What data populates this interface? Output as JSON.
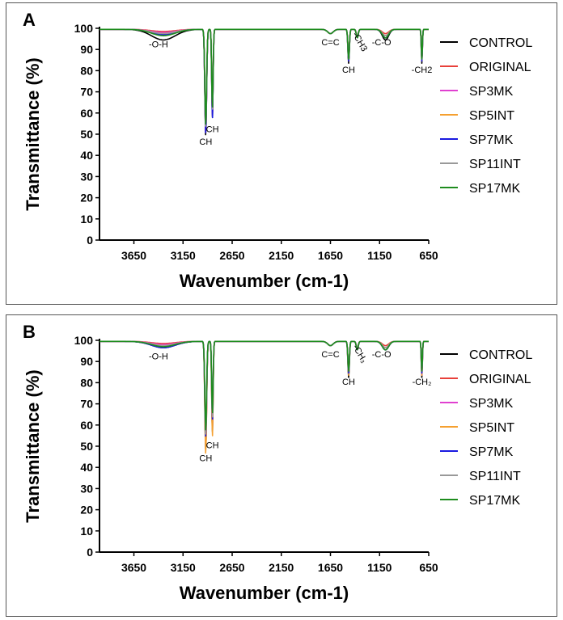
{
  "chart_data": [
    {
      "panel_label": "A",
      "type": "line",
      "xlabel": "Wavenumber (cm-1)",
      "ylabel": "Transmittance (%)",
      "xlim": [
        4000,
        650
      ],
      "x_reversed": true,
      "ylim": [
        0,
        100
      ],
      "x_ticks": [
        "3650",
        "3150",
        "2650",
        "2150",
        "1650",
        "1150",
        "650"
      ],
      "y_ticks": [
        "0",
        "10",
        "20",
        "30",
        "40",
        "50",
        "60",
        "70",
        "80",
        "90",
        "100"
      ],
      "legend_position": "right",
      "series": [
        {
          "name": "CONTROL",
          "color": "#000000",
          "values": {
            "oh_depth": 5,
            "ch_a": 50,
            "ch_b": 58,
            "ch_1465": 84,
            "ch3": 96,
            "co": 95,
            "ch2": 84
          }
        },
        {
          "name": "ORIGINAL",
          "color": "#e8403a",
          "values": {
            "oh_depth": 1,
            "ch_a": 52,
            "ch_b": 60,
            "ch_1465": 87,
            "ch3": 97,
            "co": 98,
            "ch2": 87
          }
        },
        {
          "name": "SP3MK",
          "color": "#e040d0",
          "values": {
            "oh_depth": 1.5,
            "ch_a": 51,
            "ch_b": 59,
            "ch_1465": 86,
            "ch3": 97,
            "co": 97,
            "ch2": 86
          }
        },
        {
          "name": "SP5INT",
          "color": "#f5a030",
          "values": {
            "oh_depth": 2,
            "ch_a": 53,
            "ch_b": 61,
            "ch_1465": 85,
            "ch3": 96,
            "co": 97,
            "ch2": 85
          }
        },
        {
          "name": "SP7MK",
          "color": "#1a1ae0",
          "values": {
            "oh_depth": 2.5,
            "ch_a": 51,
            "ch_b": 58,
            "ch_1465": 85,
            "ch3": 96,
            "co": 96,
            "ch2": 85
          }
        },
        {
          "name": "SP11INT",
          "color": "#999999",
          "values": {
            "oh_depth": 2,
            "ch_a": 54,
            "ch_b": 62,
            "ch_1465": 86,
            "ch3": 97,
            "co": 97,
            "ch2": 86
          }
        },
        {
          "name": "SP17MK",
          "color": "#1e8c1e",
          "values": {
            "oh_depth": 3,
            "ch_a": 55,
            "ch_b": 63,
            "ch_1465": 86,
            "ch3": 96,
            "co": 96,
            "ch2": 86
          }
        }
      ],
      "annotations": [
        {
          "text": "-O-H",
          "x": 3400,
          "y": 91
        },
        {
          "text": "CH",
          "x": 2919,
          "y": 45
        },
        {
          "text": "CH",
          "x": 2851,
          "y": 51
        },
        {
          "text": "C=C",
          "x": 1650,
          "y": 92
        },
        {
          "text": "CH",
          "x": 1465,
          "y": 79
        },
        {
          "text": "-CH3",
          "x": 1375,
          "y": 93
        },
        {
          "text": "-C-O",
          "x": 1130,
          "y": 92
        },
        {
          "text": "-CH2",
          "x": 720,
          "y": 79
        }
      ]
    },
    {
      "panel_label": "B",
      "type": "line",
      "xlabel": "Wavenumber (cm-1)",
      "ylabel": "Transmittance (%)",
      "xlim": [
        4000,
        650
      ],
      "x_reversed": true,
      "ylim": [
        0,
        100
      ],
      "x_ticks": [
        "3650",
        "3150",
        "2650",
        "2150",
        "1650",
        "1150",
        "650"
      ],
      "y_ticks": [
        "0",
        "10",
        "20",
        "30",
        "40",
        "50",
        "60",
        "70",
        "80",
        "90",
        "100"
      ],
      "legend_position": "right",
      "series": [
        {
          "name": "CONTROL",
          "color": "#000000",
          "values": {
            "oh_depth": 3,
            "ch_a": 49,
            "ch_b": 57,
            "ch_1465": 83,
            "ch3": 96,
            "co": 96,
            "ch2": 83
          }
        },
        {
          "name": "ORIGINAL",
          "color": "#e8403a",
          "values": {
            "oh_depth": 1,
            "ch_a": 52,
            "ch_b": 60,
            "ch_1465": 86,
            "ch3": 97,
            "co": 98,
            "ch2": 86
          }
        },
        {
          "name": "SP3MK",
          "color": "#e040d0",
          "values": {
            "oh_depth": 1.5,
            "ch_a": 51,
            "ch_b": 59,
            "ch_1465": 85,
            "ch3": 97,
            "co": 97,
            "ch2": 84
          }
        },
        {
          "name": "SP5INT",
          "color": "#f5a030",
          "values": {
            "oh_depth": 2,
            "ch_a": 47,
            "ch_b": 55,
            "ch_1465": 84,
            "ch3": 96,
            "co": 97,
            "ch2": 84
          }
        },
        {
          "name": "SP7MK",
          "color": "#1a1ae0",
          "values": {
            "oh_depth": 3,
            "ch_a": 55,
            "ch_b": 63,
            "ch_1465": 85,
            "ch3": 96,
            "co": 96,
            "ch2": 85
          }
        },
        {
          "name": "SP11INT",
          "color": "#999999",
          "values": {
            "oh_depth": 2,
            "ch_a": 56,
            "ch_b": 64,
            "ch_1465": 86,
            "ch3": 97,
            "co": 97,
            "ch2": 86
          }
        },
        {
          "name": "SP17MK",
          "color": "#1e8c1e",
          "values": {
            "oh_depth": 2.5,
            "ch_a": 58,
            "ch_b": 66,
            "ch_1465": 86,
            "ch3": 96,
            "co": 96,
            "ch2": 86
          }
        }
      ],
      "annotations": [
        {
          "text": "-O-H",
          "x": 3400,
          "y": 91
        },
        {
          "text": "CH",
          "x": 2919,
          "y": 43
        },
        {
          "text": "CH",
          "x": 2851,
          "y": 49
        },
        {
          "text": "C=C",
          "x": 1650,
          "y": 92
        },
        {
          "text": "CH",
          "x": 1465,
          "y": 79
        },
        {
          "text": "-CH₃",
          "x": 1375,
          "y": 93
        },
        {
          "text": "-C-O",
          "x": 1130,
          "y": 92
        },
        {
          "text": "-CH₂",
          "x": 720,
          "y": 79
        }
      ]
    }
  ]
}
